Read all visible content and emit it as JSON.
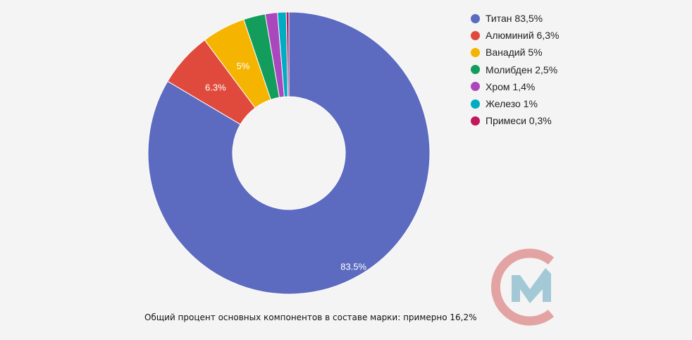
{
  "chart_data": {
    "type": "pie",
    "donut": true,
    "start": "top",
    "direction": "clockwise",
    "categories": [
      "Титан",
      "Алюминий",
      "Ванадий",
      "Молибден",
      "Хром",
      "Железо",
      "Примеси"
    ],
    "values": [
      83.5,
      6.3,
      5,
      2.5,
      1.4,
      1,
      0.3
    ],
    "data_labels": [
      "83.5%",
      "6.3%",
      "5%",
      "",
      "",
      "",
      ""
    ],
    "colors": [
      "#5c6bc0",
      "#e04a3c",
      "#f5b400",
      "#139d5c",
      "#ab47bc",
      "#00acc1",
      "#c2185b"
    ],
    "legend": {
      "placement": "right",
      "entries": [
        "Титан 83,5%",
        "Алюминий 6,3%",
        "Ванадий 5%",
        "Молибден 2,5%",
        "Хром 1,4%",
        "Железо 1%",
        "Примеси 0,3%"
      ]
    }
  },
  "footnote": "Общий процент основных компонентов в составе марки: примерно 16,2%",
  "logo": {
    "colors": [
      "#e4a3a3",
      "#a3c8d6"
    ]
  }
}
